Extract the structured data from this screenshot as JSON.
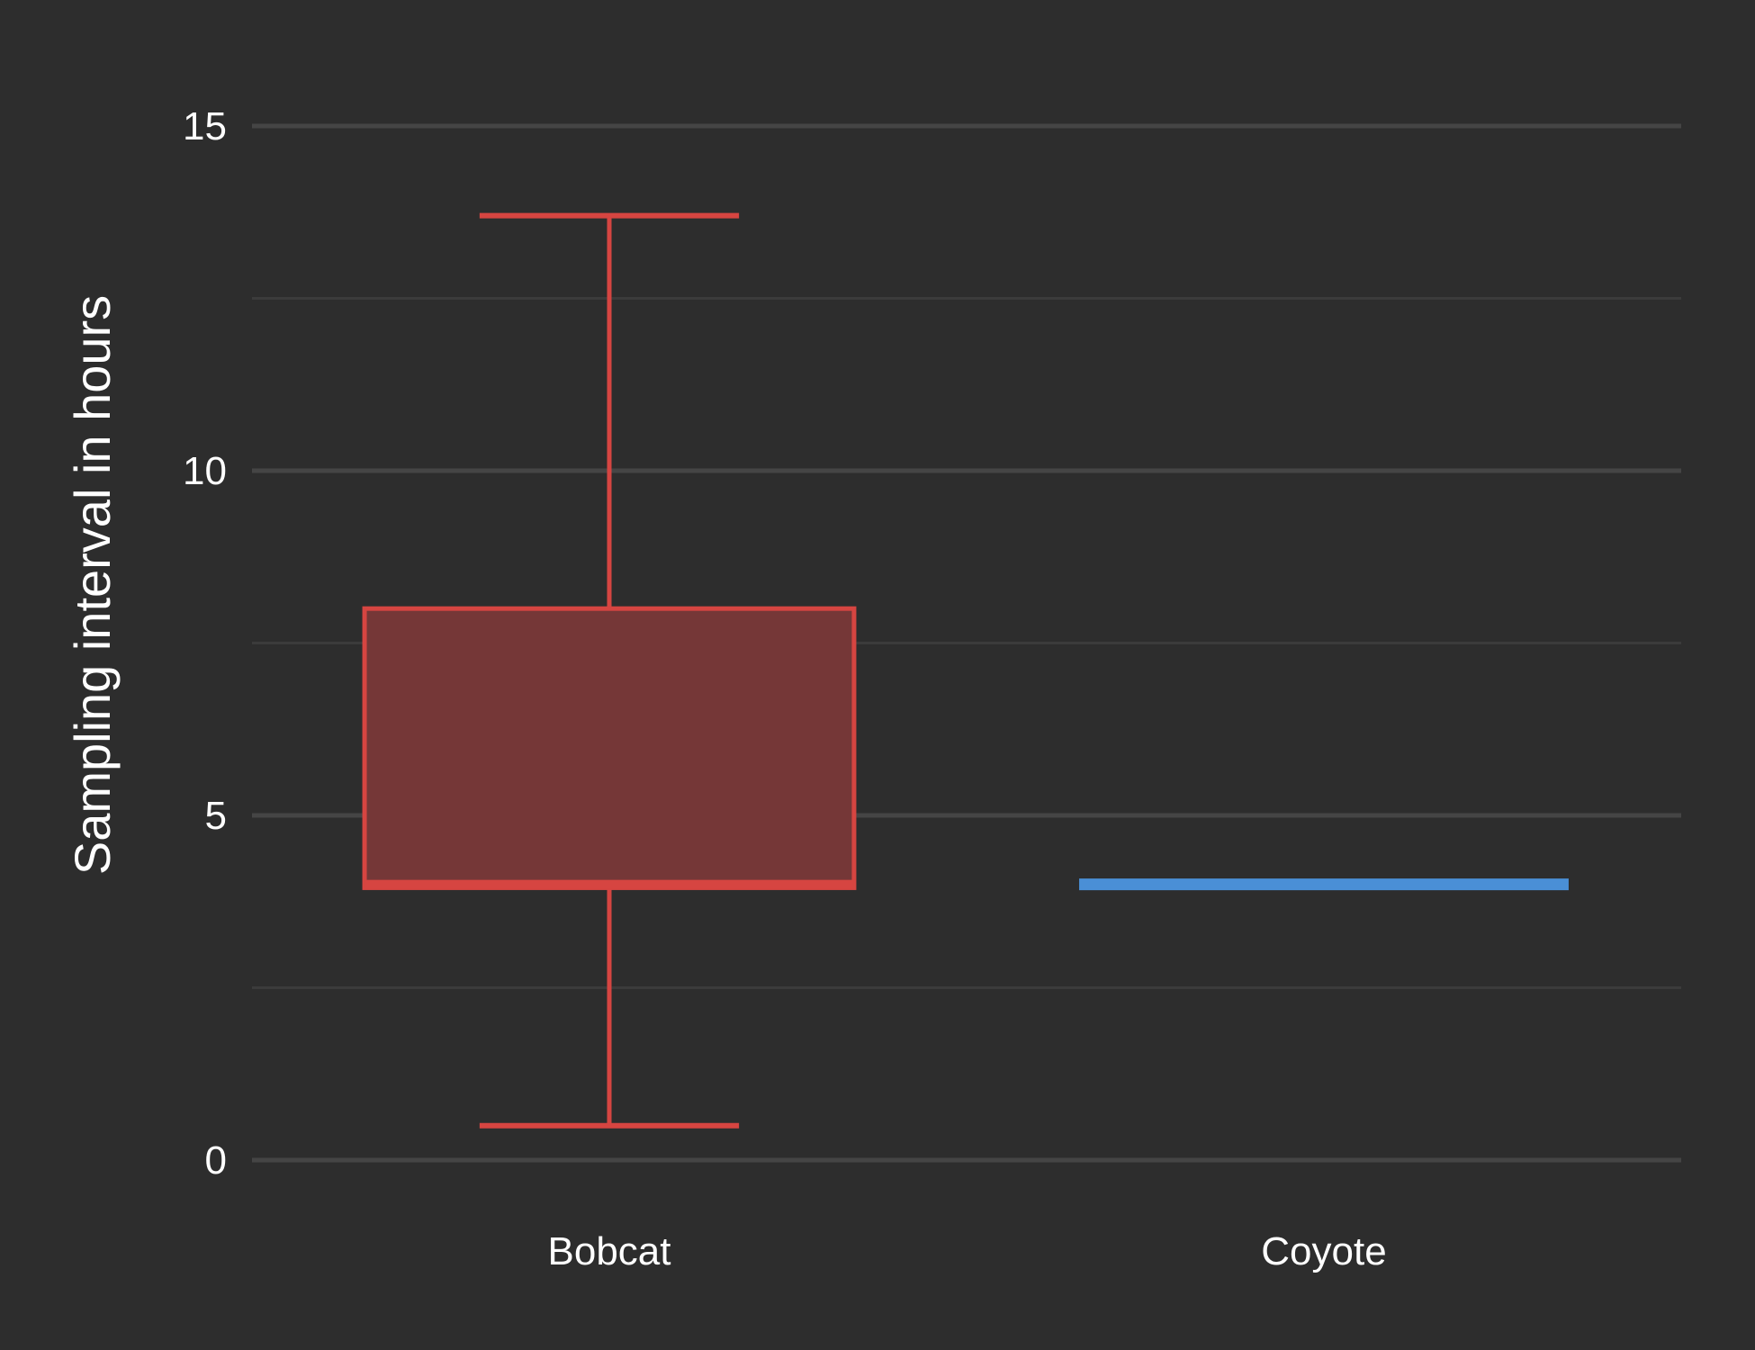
{
  "chart_data": {
    "type": "boxplot",
    "title": "",
    "xlabel": "",
    "ylabel": "Sampling interval in hours",
    "ylim": [
      0,
      15
    ],
    "yticks": [
      0,
      5,
      10,
      15
    ],
    "yminor": [
      2.5,
      7.5,
      12.5
    ],
    "grid": true,
    "categories": [
      "Bobcat",
      "Coyote"
    ],
    "series": [
      {
        "category": "Bobcat",
        "color": "#d64541",
        "fill": "#753737",
        "whisker_low": 0.5,
        "q1": 3.95,
        "median": 4.0,
        "q3": 8.0,
        "whisker_high": 13.7
      },
      {
        "category": "Coyote",
        "color": "#4a8fd6",
        "fill": "#4a8fd6",
        "whisker_low": 4.0,
        "q1": 4.0,
        "median": 4.0,
        "q3": 4.0,
        "whisker_high": 4.0
      }
    ]
  }
}
